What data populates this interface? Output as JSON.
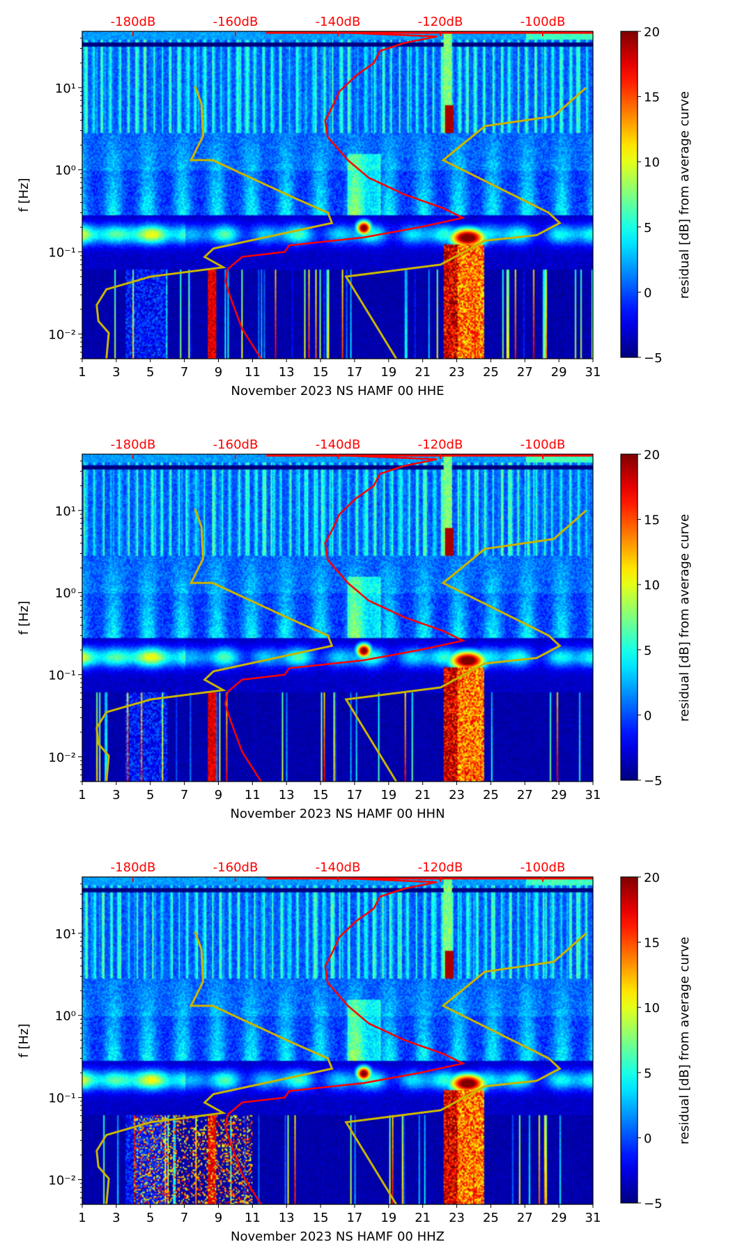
{
  "chart_data": {
    "type": "heatmap",
    "panels": [
      {
        "xlabel": "November 2023 NS HAMF 00 HHE"
      },
      {
        "xlabel": "November 2023 NS HAMF 00 HHN"
      },
      {
        "xlabel": "November 2023 NS HAMF 00 HHZ"
      }
    ],
    "ylabel": "f [Hz]",
    "x_range_days": [
      1,
      31
    ],
    "x_ticks": [
      "1",
      "3",
      "5",
      "7",
      "9",
      "11",
      "13",
      "15",
      "17",
      "19",
      "21",
      "23",
      "25",
      "27",
      "29",
      "31"
    ],
    "y_range_hz": [
      0.005,
      48.5
    ],
    "y_scale": "log",
    "y_ticks": [
      {
        "value": 10,
        "label": "10¹"
      },
      {
        "value": 1,
        "label": "10⁰"
      },
      {
        "value": 0.1,
        "label": "10⁻¹"
      },
      {
        "value": 0.01,
        "label": "10⁻²"
      }
    ],
    "top_axis": {
      "color": "#ff0000",
      "range_db": [
        -195,
        -90
      ],
      "ticks": [
        -180,
        -160,
        -140,
        -120,
        -100
      ],
      "labels": [
        "-180dB",
        "-160dB",
        "-140dB",
        "-120dB",
        "-100dB"
      ]
    },
    "colorbar": {
      "label": "residual [dB] from average curve",
      "range": [
        -5,
        20
      ],
      "ticks": [
        "−5",
        "0",
        "5",
        "10",
        "15",
        "20"
      ],
      "tick_values": [
        -5,
        0,
        5,
        10,
        15,
        20
      ],
      "colormap": "jet"
    },
    "average_curve_red": {
      "color": "#ff0000",
      "points_db_hz": [
        [
          -155,
          0.005
        ],
        [
          -158.7,
          0.0115
        ],
        [
          -161,
          0.028
        ],
        [
          -162,
          0.044
        ],
        [
          -161.5,
          0.062
        ],
        [
          -158.7,
          0.087
        ],
        [
          -150.4,
          0.1
        ],
        [
          -149.5,
          0.12
        ],
        [
          -135,
          0.15
        ],
        [
          -124,
          0.2
        ],
        [
          -115.6,
          0.26
        ],
        [
          -119.4,
          0.34
        ],
        [
          -127,
          0.5
        ],
        [
          -134,
          0.8
        ],
        [
          -138,
          1.3
        ],
        [
          -142,
          2.5
        ],
        [
          -142.5,
          4
        ],
        [
          -141,
          6
        ],
        [
          -139.7,
          9
        ],
        [
          -136.5,
          14
        ],
        [
          -133,
          20
        ],
        [
          -131.8,
          28
        ],
        [
          -127,
          35
        ],
        [
          -120.7,
          42
        ],
        [
          -140,
          47
        ]
      ]
    },
    "curves_yellow": {
      "color": "#c8b400",
      "left_days_hz": [
        [
          2.42,
          0.005
        ],
        [
          2.56,
          0.0103
        ],
        [
          1.95,
          0.0144
        ],
        [
          1.85,
          0.0225
        ],
        [
          2.42,
          0.035
        ],
        [
          5.02,
          0.05
        ],
        [
          9.28,
          0.065
        ],
        [
          8.19,
          0.087
        ],
        [
          8.71,
          0.11
        ],
        [
          15.67,
          0.225
        ],
        [
          15.43,
          0.3
        ],
        [
          13.3,
          0.47
        ],
        [
          8.66,
          1.31
        ],
        [
          7.39,
          1.31
        ],
        [
          8.1,
          2.58
        ],
        [
          8.0,
          6.4
        ],
        [
          7.62,
          10.5
        ]
      ],
      "right_days_hz": [
        [
          19.45,
          0.005
        ],
        [
          16.5,
          0.05
        ],
        [
          22.05,
          0.07
        ],
        [
          24.65,
          0.137
        ],
        [
          27.7,
          0.16
        ],
        [
          29.05,
          0.225
        ],
        [
          28.4,
          0.3
        ],
        [
          22.2,
          1.31
        ],
        [
          24.65,
          3.4
        ],
        [
          28.7,
          4.5
        ],
        [
          30.6,
          10
        ]
      ]
    }
  }
}
